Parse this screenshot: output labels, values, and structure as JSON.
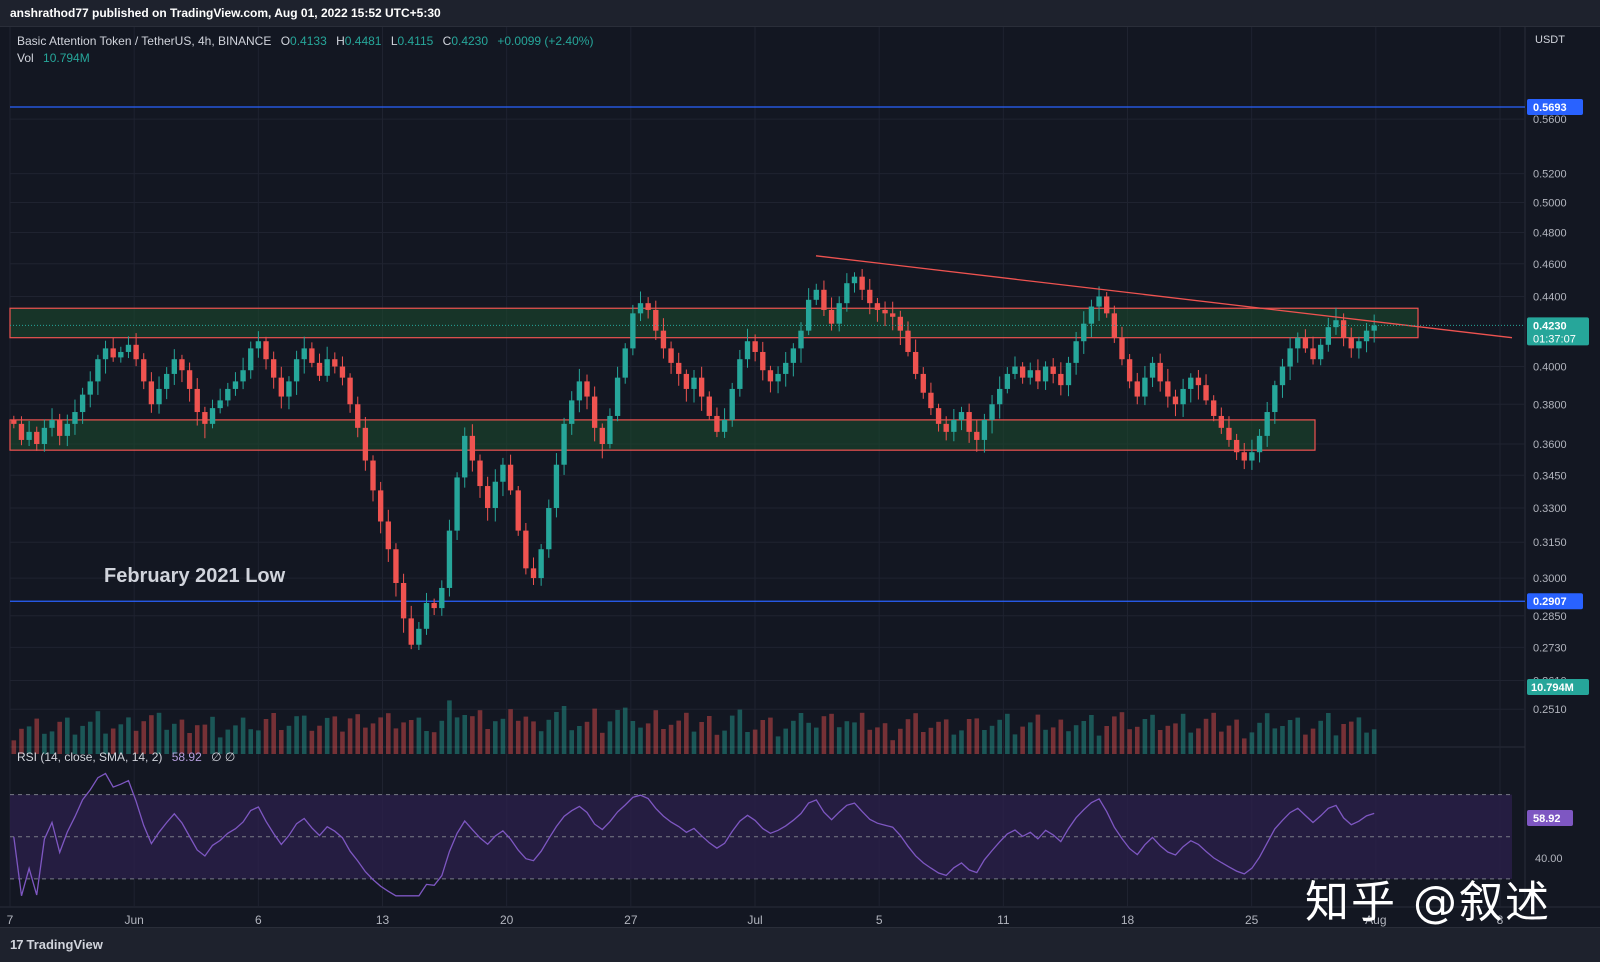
{
  "header": {
    "published_text": "anshrathod77 published on TradingView.com, Aug 01, 2022 15:52 UTC+5:30"
  },
  "legend": {
    "symbol": "Basic Attention Token / TetherUS, 4h, BINANCE",
    "open_label": "O",
    "open": "0.4133",
    "high_label": "H",
    "high": "0.4481",
    "low_label": "L",
    "low": "0.4115",
    "close_label": "C",
    "close": "0.4230",
    "change": "+0.0099 (+2.40%)",
    "vol_label": "Vol",
    "vol": "10.794M"
  },
  "rsi_legend": {
    "label": "RSI (14, close, SMA, 14, 2)",
    "value": "58.92",
    "extra": "∅ ∅"
  },
  "annotation": "February 2021 Low",
  "watermark": "知乎 @叙述",
  "footer": {
    "logo_mark": "17",
    "logo_text": "TradingView"
  },
  "colors": {
    "background": "#131722",
    "up": "#26a69a",
    "down": "#ef5350",
    "zone_fill": "#1b4d2e",
    "zone_border": "#ef5350",
    "hline": "#2962ff",
    "trendline": "#ef5350",
    "rsi_line": "#7e57c2",
    "rsi_band": "#2a1f4a"
  },
  "chart_data": {
    "type": "candlestick",
    "currency": "USDT",
    "price_axis": {
      "scale": "log",
      "ticks": [
        "0.5600",
        "0.5200",
        "0.5000",
        "0.4800",
        "0.4600",
        "0.4400",
        "0.4000",
        "0.3800",
        "0.3600",
        "0.3450",
        "0.3300",
        "0.3150",
        "0.3000",
        "0.2850",
        "0.2730",
        "0.2610",
        "0.2510"
      ]
    },
    "time_axis": {
      "ticks": [
        {
          "label": "7",
          "pos": 0
        },
        {
          "label": "Jun",
          "pos": 1
        },
        {
          "label": "6",
          "pos": 2
        },
        {
          "label": "13",
          "pos": 3
        },
        {
          "label": "20",
          "pos": 4
        },
        {
          "label": "27",
          "pos": 5
        },
        {
          "label": "Jul",
          "pos": 6
        },
        {
          "label": "5",
          "pos": 7
        },
        {
          "label": "11",
          "pos": 8
        },
        {
          "label": "18",
          "pos": 9
        },
        {
          "label": "25",
          "pos": 10
        },
        {
          "label": "Aug",
          "pos": 11
        },
        {
          "label": "8",
          "pos": 12
        }
      ]
    },
    "horizontal_lines": [
      {
        "value": 0.5693,
        "label": "0.5693"
      },
      {
        "value": 0.2907,
        "label": "0.2907"
      }
    ],
    "zones": [
      {
        "from": 0.416,
        "to": 0.433
      },
      {
        "from": 0.357,
        "to": 0.372
      }
    ],
    "trendline": {
      "start": 0.465,
      "end": 0.416
    },
    "last_price": {
      "value": "0.4230",
      "countdown": "01:37:07"
    },
    "volume_label": "10.794M",
    "closes": [
      0.37,
      0.362,
      0.366,
      0.36,
      0.368,
      0.372,
      0.364,
      0.37,
      0.376,
      0.385,
      0.392,
      0.404,
      0.41,
      0.405,
      0.408,
      0.412,
      0.404,
      0.392,
      0.38,
      0.388,
      0.396,
      0.404,
      0.398,
      0.388,
      0.376,
      0.37,
      0.378,
      0.382,
      0.388,
      0.392,
      0.398,
      0.41,
      0.414,
      0.404,
      0.394,
      0.384,
      0.392,
      0.404,
      0.41,
      0.402,
      0.395,
      0.404,
      0.4,
      0.394,
      0.38,
      0.368,
      0.352,
      0.338,
      0.324,
      0.312,
      0.298,
      0.284,
      0.274,
      0.28,
      0.29,
      0.288,
      0.296,
      0.32,
      0.344,
      0.364,
      0.352,
      0.34,
      0.33,
      0.342,
      0.35,
      0.338,
      0.32,
      0.304,
      0.3,
      0.312,
      0.33,
      0.35,
      0.37,
      0.382,
      0.392,
      0.384,
      0.368,
      0.36,
      0.374,
      0.394,
      0.41,
      0.43,
      0.436,
      0.432,
      0.42,
      0.41,
      0.402,
      0.396,
      0.388,
      0.394,
      0.384,
      0.374,
      0.366,
      0.372,
      0.388,
      0.404,
      0.414,
      0.408,
      0.398,
      0.392,
      0.396,
      0.402,
      0.41,
      0.42,
      0.438,
      0.444,
      0.432,
      0.424,
      0.436,
      0.448,
      0.452,
      0.444,
      0.436,
      0.432,
      0.43,
      0.428,
      0.42,
      0.408,
      0.396,
      0.386,
      0.378,
      0.37,
      0.366,
      0.372,
      0.376,
      0.366,
      0.362,
      0.372,
      0.38,
      0.388,
      0.396,
      0.4,
      0.394,
      0.398,
      0.392,
      0.4,
      0.396,
      0.39,
      0.402,
      0.414,
      0.424,
      0.434,
      0.44,
      0.43,
      0.416,
      0.404,
      0.392,
      0.384,
      0.394,
      0.402,
      0.392,
      0.384,
      0.38,
      0.388,
      0.394,
      0.39,
      0.382,
      0.374,
      0.368,
      0.362,
      0.356,
      0.352,
      0.356,
      0.364,
      0.376,
      0.39,
      0.4,
      0.41,
      0.416,
      0.41,
      0.404,
      0.412,
      0.422,
      0.426,
      0.416,
      0.41,
      0.414,
      0.42,
      0.423
    ]
  }
}
